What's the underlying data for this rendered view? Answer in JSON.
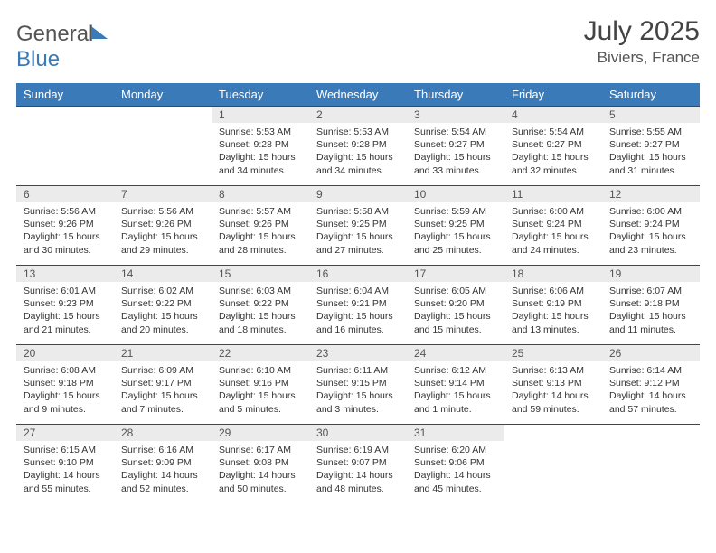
{
  "brand": {
    "part1": "General",
    "part2": "Blue"
  },
  "header": {
    "month_title": "July 2025",
    "location": "Biviers, France"
  },
  "colors": {
    "header_bg": "#3a7ab8",
    "header_text": "#ffffff",
    "row_border": "#1f4e79",
    "daynum_bg": "#ebebeb",
    "text": "#333333"
  },
  "weekdays": [
    "Sunday",
    "Monday",
    "Tuesday",
    "Wednesday",
    "Thursday",
    "Friday",
    "Saturday"
  ],
  "weeks": [
    [
      null,
      null,
      {
        "n": "1",
        "sunrise": "Sunrise: 5:53 AM",
        "sunset": "Sunset: 9:28 PM",
        "day1": "Daylight: 15 hours",
        "day2": "and 34 minutes."
      },
      {
        "n": "2",
        "sunrise": "Sunrise: 5:53 AM",
        "sunset": "Sunset: 9:28 PM",
        "day1": "Daylight: 15 hours",
        "day2": "and 34 minutes."
      },
      {
        "n": "3",
        "sunrise": "Sunrise: 5:54 AM",
        "sunset": "Sunset: 9:27 PM",
        "day1": "Daylight: 15 hours",
        "day2": "and 33 minutes."
      },
      {
        "n": "4",
        "sunrise": "Sunrise: 5:54 AM",
        "sunset": "Sunset: 9:27 PM",
        "day1": "Daylight: 15 hours",
        "day2": "and 32 minutes."
      },
      {
        "n": "5",
        "sunrise": "Sunrise: 5:55 AM",
        "sunset": "Sunset: 9:27 PM",
        "day1": "Daylight: 15 hours",
        "day2": "and 31 minutes."
      }
    ],
    [
      {
        "n": "6",
        "sunrise": "Sunrise: 5:56 AM",
        "sunset": "Sunset: 9:26 PM",
        "day1": "Daylight: 15 hours",
        "day2": "and 30 minutes."
      },
      {
        "n": "7",
        "sunrise": "Sunrise: 5:56 AM",
        "sunset": "Sunset: 9:26 PM",
        "day1": "Daylight: 15 hours",
        "day2": "and 29 minutes."
      },
      {
        "n": "8",
        "sunrise": "Sunrise: 5:57 AM",
        "sunset": "Sunset: 9:26 PM",
        "day1": "Daylight: 15 hours",
        "day2": "and 28 minutes."
      },
      {
        "n": "9",
        "sunrise": "Sunrise: 5:58 AM",
        "sunset": "Sunset: 9:25 PM",
        "day1": "Daylight: 15 hours",
        "day2": "and 27 minutes."
      },
      {
        "n": "10",
        "sunrise": "Sunrise: 5:59 AM",
        "sunset": "Sunset: 9:25 PM",
        "day1": "Daylight: 15 hours",
        "day2": "and 25 minutes."
      },
      {
        "n": "11",
        "sunrise": "Sunrise: 6:00 AM",
        "sunset": "Sunset: 9:24 PM",
        "day1": "Daylight: 15 hours",
        "day2": "and 24 minutes."
      },
      {
        "n": "12",
        "sunrise": "Sunrise: 6:00 AM",
        "sunset": "Sunset: 9:24 PM",
        "day1": "Daylight: 15 hours",
        "day2": "and 23 minutes."
      }
    ],
    [
      {
        "n": "13",
        "sunrise": "Sunrise: 6:01 AM",
        "sunset": "Sunset: 9:23 PM",
        "day1": "Daylight: 15 hours",
        "day2": "and 21 minutes."
      },
      {
        "n": "14",
        "sunrise": "Sunrise: 6:02 AM",
        "sunset": "Sunset: 9:22 PM",
        "day1": "Daylight: 15 hours",
        "day2": "and 20 minutes."
      },
      {
        "n": "15",
        "sunrise": "Sunrise: 6:03 AM",
        "sunset": "Sunset: 9:22 PM",
        "day1": "Daylight: 15 hours",
        "day2": "and 18 minutes."
      },
      {
        "n": "16",
        "sunrise": "Sunrise: 6:04 AM",
        "sunset": "Sunset: 9:21 PM",
        "day1": "Daylight: 15 hours",
        "day2": "and 16 minutes."
      },
      {
        "n": "17",
        "sunrise": "Sunrise: 6:05 AM",
        "sunset": "Sunset: 9:20 PM",
        "day1": "Daylight: 15 hours",
        "day2": "and 15 minutes."
      },
      {
        "n": "18",
        "sunrise": "Sunrise: 6:06 AM",
        "sunset": "Sunset: 9:19 PM",
        "day1": "Daylight: 15 hours",
        "day2": "and 13 minutes."
      },
      {
        "n": "19",
        "sunrise": "Sunrise: 6:07 AM",
        "sunset": "Sunset: 9:18 PM",
        "day1": "Daylight: 15 hours",
        "day2": "and 11 minutes."
      }
    ],
    [
      {
        "n": "20",
        "sunrise": "Sunrise: 6:08 AM",
        "sunset": "Sunset: 9:18 PM",
        "day1": "Daylight: 15 hours",
        "day2": "and 9 minutes."
      },
      {
        "n": "21",
        "sunrise": "Sunrise: 6:09 AM",
        "sunset": "Sunset: 9:17 PM",
        "day1": "Daylight: 15 hours",
        "day2": "and 7 minutes."
      },
      {
        "n": "22",
        "sunrise": "Sunrise: 6:10 AM",
        "sunset": "Sunset: 9:16 PM",
        "day1": "Daylight: 15 hours",
        "day2": "and 5 minutes."
      },
      {
        "n": "23",
        "sunrise": "Sunrise: 6:11 AM",
        "sunset": "Sunset: 9:15 PM",
        "day1": "Daylight: 15 hours",
        "day2": "and 3 minutes."
      },
      {
        "n": "24",
        "sunrise": "Sunrise: 6:12 AM",
        "sunset": "Sunset: 9:14 PM",
        "day1": "Daylight: 15 hours",
        "day2": "and 1 minute."
      },
      {
        "n": "25",
        "sunrise": "Sunrise: 6:13 AM",
        "sunset": "Sunset: 9:13 PM",
        "day1": "Daylight: 14 hours",
        "day2": "and 59 minutes."
      },
      {
        "n": "26",
        "sunrise": "Sunrise: 6:14 AM",
        "sunset": "Sunset: 9:12 PM",
        "day1": "Daylight: 14 hours",
        "day2": "and 57 minutes."
      }
    ],
    [
      {
        "n": "27",
        "sunrise": "Sunrise: 6:15 AM",
        "sunset": "Sunset: 9:10 PM",
        "day1": "Daylight: 14 hours",
        "day2": "and 55 minutes."
      },
      {
        "n": "28",
        "sunrise": "Sunrise: 6:16 AM",
        "sunset": "Sunset: 9:09 PM",
        "day1": "Daylight: 14 hours",
        "day2": "and 52 minutes."
      },
      {
        "n": "29",
        "sunrise": "Sunrise: 6:17 AM",
        "sunset": "Sunset: 9:08 PM",
        "day1": "Daylight: 14 hours",
        "day2": "and 50 minutes."
      },
      {
        "n": "30",
        "sunrise": "Sunrise: 6:19 AM",
        "sunset": "Sunset: 9:07 PM",
        "day1": "Daylight: 14 hours",
        "day2": "and 48 minutes."
      },
      {
        "n": "31",
        "sunrise": "Sunrise: 6:20 AM",
        "sunset": "Sunset: 9:06 PM",
        "day1": "Daylight: 14 hours",
        "day2": "and 45 minutes."
      },
      null,
      null
    ]
  ]
}
